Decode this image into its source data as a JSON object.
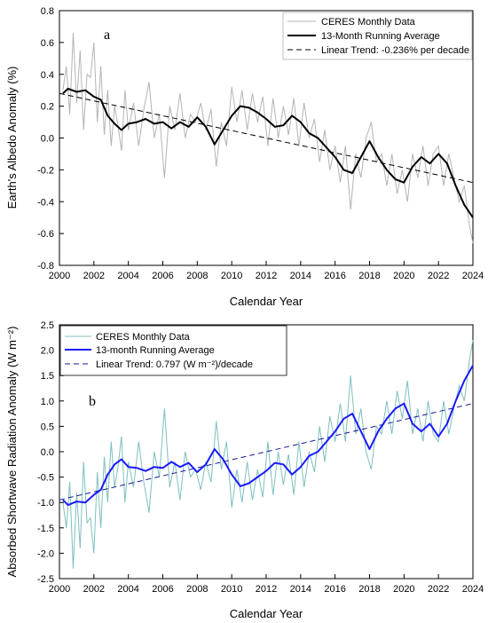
{
  "colors": {
    "panel_a_monthly": "#b4b4b4",
    "panel_a_running": "#000000",
    "panel_a_trend": "#000000",
    "panel_b_monthly": "#7fbfbf",
    "panel_b_running": "#1a1aff",
    "panel_b_trend": "#1a1a99",
    "panel_b_legend_text": "#00008b",
    "legend_monthly_text_a": "#999999",
    "legend_monthly_text_b": "#2e8b8b"
  },
  "chart_data": [
    {
      "panel_letter": "a",
      "type": "line",
      "xlabel": "Calendar Year",
      "ylabel": "Earth's Albedo Anomaly (%)",
      "xlim": [
        2000,
        2024
      ],
      "ylim": [
        -0.8,
        0.8
      ],
      "xticks": [
        "2000",
        "2002",
        "2004",
        "2006",
        "2008",
        "2010",
        "2012",
        "2014",
        "2016",
        "2018",
        "2020",
        "2022",
        "2024"
      ],
      "yticks": [
        "0.8",
        "0.6",
        "0.4",
        "0.2",
        "0.0",
        "-0.2",
        "-0.4",
        "-0.6",
        "-0.8"
      ],
      "grid": false,
      "legend_position": "top-right",
      "legend": [
        "CERES Monthly Data",
        "13-Month Running Average",
        "Linear Trend: -0.236% per decade"
      ],
      "series": [
        {
          "name": "13-Month Running Average",
          "style": "solid-thick",
          "x": [
            2000.2,
            2000.5,
            2001,
            2001.5,
            2002,
            2002.4,
            2002.8,
            2003.2,
            2003.6,
            2004,
            2004.5,
            2005,
            2005.5,
            2006,
            2006.5,
            2007,
            2007.5,
            2008,
            2008.5,
            2009,
            2009.5,
            2010,
            2010.5,
            2011,
            2011.5,
            2012,
            2012.5,
            2013,
            2013.5,
            2014,
            2014.5,
            2015,
            2015.5,
            2016,
            2016.5,
            2017,
            2017.5,
            2018,
            2018.5,
            2019,
            2019.5,
            2020,
            2020.5,
            2021,
            2021.5,
            2022,
            2022.5,
            2023,
            2023.5,
            2024
          ],
          "y": [
            0.28,
            0.31,
            0.29,
            0.3,
            0.26,
            0.24,
            0.14,
            0.09,
            0.05,
            0.09,
            0.1,
            0.12,
            0.09,
            0.1,
            0.06,
            0.1,
            0.07,
            0.13,
            0.07,
            -0.04,
            0.05,
            0.14,
            0.2,
            0.19,
            0.16,
            0.12,
            0.07,
            0.08,
            0.14,
            0.1,
            0.03,
            0.0,
            -0.06,
            -0.12,
            -0.2,
            -0.22,
            -0.12,
            -0.02,
            -0.12,
            -0.2,
            -0.26,
            -0.28,
            -0.18,
            -0.12,
            -0.16,
            -0.1,
            -0.16,
            -0.3,
            -0.42,
            -0.5
          ]
        },
        {
          "name": "Linear Trend: -0.236% per decade",
          "style": "dashed",
          "x": [
            2000,
            2024
          ],
          "y": [
            0.28,
            -0.28
          ]
        },
        {
          "name": "CERES Monthly Data",
          "style": "thin",
          "x": [
            2000.2,
            2000.4,
            2000.6,
            2000.8,
            2001.0,
            2001.2,
            2001.4,
            2001.6,
            2001.8,
            2002.0,
            2002.2,
            2002.4,
            2002.6,
            2002.8,
            2003.0,
            2003.2,
            2003.4,
            2003.6,
            2003.8,
            2004.0,
            2004.3,
            2004.6,
            2004.9,
            2005.2,
            2005.5,
            2005.8,
            2006.1,
            2006.4,
            2006.7,
            2007.0,
            2007.3,
            2007.6,
            2007.9,
            2008.2,
            2008.5,
            2008.8,
            2009.1,
            2009.4,
            2009.7,
            2010.0,
            2010.3,
            2010.6,
            2010.9,
            2011.2,
            2011.5,
            2011.8,
            2012.1,
            2012.4,
            2012.7,
            2013.0,
            2013.3,
            2013.6,
            2013.9,
            2014.2,
            2014.5,
            2014.8,
            2015.1,
            2015.4,
            2015.7,
            2016.0,
            2016.3,
            2016.6,
            2016.9,
            2017.2,
            2017.5,
            2017.8,
            2018.1,
            2018.4,
            2018.7,
            2019.0,
            2019.3,
            2019.6,
            2019.9,
            2020.2,
            2020.5,
            2020.8,
            2021.1,
            2021.4,
            2021.7,
            2022.0,
            2022.3,
            2022.6,
            2022.9,
            2023.2,
            2023.5,
            2023.8,
            2024.0
          ],
          "y": [
            0.3,
            0.45,
            0.15,
            0.66,
            0.22,
            0.55,
            0.05,
            0.4,
            0.38,
            0.6,
            0.1,
            0.45,
            0.02,
            0.3,
            -0.05,
            0.2,
            0.08,
            -0.08,
            0.3,
            0.05,
            0.22,
            -0.05,
            0.18,
            0.35,
            0.0,
            0.15,
            -0.25,
            0.2,
            0.05,
            0.28,
            0.0,
            0.15,
            0.1,
            0.22,
            0.05,
            0.18,
            -0.18,
            0.1,
            -0.05,
            0.32,
            0.1,
            0.3,
            0.05,
            0.28,
            0.1,
            0.26,
            -0.05,
            0.25,
            0.0,
            0.2,
            0.02,
            0.25,
            -0.05,
            0.22,
            0.0,
            0.12,
            -0.15,
            0.05,
            -0.2,
            -0.05,
            -0.28,
            -0.05,
            -0.45,
            -0.1,
            -0.25,
            0.0,
            0.1,
            -0.15,
            -0.1,
            -0.3,
            -0.1,
            -0.35,
            -0.2,
            -0.4,
            -0.1,
            -0.25,
            -0.05,
            -0.3,
            -0.1,
            -0.05,
            -0.3,
            -0.1,
            -0.25,
            -0.4,
            -0.3,
            -0.55,
            -0.66
          ]
        }
      ]
    },
    {
      "panel_letter": "b",
      "type": "line",
      "xlabel": "Calendar Year",
      "ylabel": "Absorbed Shortwave Radiation Anomaly (W m⁻²)",
      "xlim": [
        2000,
        2024
      ],
      "ylim": [
        -2.5,
        2.5
      ],
      "xticks": [
        "2000",
        "2002",
        "2004",
        "2006",
        "2008",
        "2010",
        "2012",
        "2014",
        "2016",
        "2018",
        "2020",
        "2022",
        "2024"
      ],
      "yticks": [
        "2.5",
        "2.0",
        "1.5",
        "1.0",
        "0.5",
        "0.0",
        "-0.5",
        "-1.0",
        "-1.5",
        "-2.0",
        "-2.5"
      ],
      "grid": false,
      "legend_position": "top-left",
      "legend": [
        "CERES Monthly Data",
        "13-month Running Average",
        "Linear Trend: 0.797 (W m⁻²)/decade"
      ],
      "series": [
        {
          "name": "13-month Running Average",
          "style": "solid-thick",
          "x": [
            2000.2,
            2000.5,
            2001,
            2001.5,
            2002,
            2002.4,
            2002.8,
            2003.2,
            2003.6,
            2004,
            2004.5,
            2005,
            2005.5,
            2006,
            2006.5,
            2007,
            2007.5,
            2008,
            2008.5,
            2009,
            2009.5,
            2010,
            2010.5,
            2011,
            2011.5,
            2012,
            2012.5,
            2013,
            2013.5,
            2014,
            2014.5,
            2015,
            2015.5,
            2016,
            2016.5,
            2017,
            2017.5,
            2018,
            2018.5,
            2019,
            2019.5,
            2020,
            2020.5,
            2021,
            2021.5,
            2022,
            2022.5,
            2023,
            2023.5,
            2024
          ],
          "y": [
            -0.95,
            -1.05,
            -0.98,
            -1.0,
            -0.85,
            -0.75,
            -0.45,
            -0.25,
            -0.15,
            -0.3,
            -0.32,
            -0.38,
            -0.3,
            -0.32,
            -0.2,
            -0.3,
            -0.22,
            -0.4,
            -0.25,
            0.05,
            -0.15,
            -0.45,
            -0.68,
            -0.62,
            -0.5,
            -0.38,
            -0.22,
            -0.25,
            -0.45,
            -0.3,
            -0.08,
            0.0,
            0.2,
            0.4,
            0.65,
            0.75,
            0.4,
            0.05,
            0.4,
            0.65,
            0.85,
            0.95,
            0.55,
            0.4,
            0.55,
            0.3,
            0.55,
            1.0,
            1.4,
            1.7
          ]
        },
        {
          "name": "Linear Trend: 0.797 (W m⁻²)/decade",
          "style": "dashed",
          "x": [
            2000,
            2024
          ],
          "y": [
            -0.95,
            0.95
          ]
        },
        {
          "name": "CERES Monthly Data",
          "style": "thin",
          "x": [
            2000.2,
            2000.4,
            2000.6,
            2000.8,
            2001.0,
            2001.2,
            2001.4,
            2001.6,
            2001.8,
            2002.0,
            2002.2,
            2002.4,
            2002.6,
            2002.8,
            2003.0,
            2003.2,
            2003.4,
            2003.6,
            2003.8,
            2004.0,
            2004.3,
            2004.6,
            2004.9,
            2005.2,
            2005.5,
            2005.8,
            2006.1,
            2006.4,
            2006.7,
            2007.0,
            2007.3,
            2007.6,
            2007.9,
            2008.2,
            2008.5,
            2008.8,
            2009.1,
            2009.4,
            2009.7,
            2010.0,
            2010.3,
            2010.6,
            2010.9,
            2011.2,
            2011.5,
            2011.8,
            2012.1,
            2012.4,
            2012.7,
            2013.0,
            2013.3,
            2013.6,
            2013.9,
            2014.2,
            2014.5,
            2014.8,
            2015.1,
            2015.4,
            2015.7,
            2016.0,
            2016.3,
            2016.6,
            2016.9,
            2017.2,
            2017.5,
            2017.8,
            2018.1,
            2018.4,
            2018.7,
            2019.0,
            2019.3,
            2019.6,
            2019.9,
            2020.2,
            2020.5,
            2020.8,
            2021.1,
            2021.4,
            2021.7,
            2022.0,
            2022.3,
            2022.6,
            2022.9,
            2023.2,
            2023.5,
            2023.8,
            2024.0
          ],
          "y": [
            -1.0,
            -1.5,
            -0.6,
            -2.3,
            -0.8,
            -1.9,
            -0.2,
            -1.4,
            -1.3,
            -2.0,
            -0.4,
            -1.5,
            -0.1,
            -1.0,
            0.2,
            -0.7,
            -0.3,
            0.3,
            -1.0,
            -0.2,
            -0.7,
            0.2,
            -0.6,
            -1.2,
            0.0,
            -0.5,
            0.85,
            -0.7,
            -0.2,
            -0.95,
            0.0,
            -0.5,
            -0.35,
            -0.75,
            -0.2,
            -0.6,
            0.6,
            -0.35,
            0.2,
            -1.1,
            -0.35,
            -1.0,
            -0.2,
            -0.95,
            -0.35,
            -0.9,
            0.2,
            -0.85,
            0.0,
            -0.65,
            -0.05,
            -0.85,
            0.2,
            -0.7,
            0.0,
            -0.4,
            0.5,
            -0.2,
            0.7,
            0.2,
            0.95,
            0.2,
            1.5,
            0.35,
            0.85,
            0.0,
            -0.35,
            0.5,
            0.35,
            1.0,
            0.35,
            1.2,
            0.65,
            1.4,
            0.35,
            0.85,
            0.2,
            1.0,
            0.35,
            0.2,
            1.0,
            0.35,
            0.85,
            1.3,
            1.0,
            1.8,
            2.2
          ]
        }
      ]
    }
  ]
}
